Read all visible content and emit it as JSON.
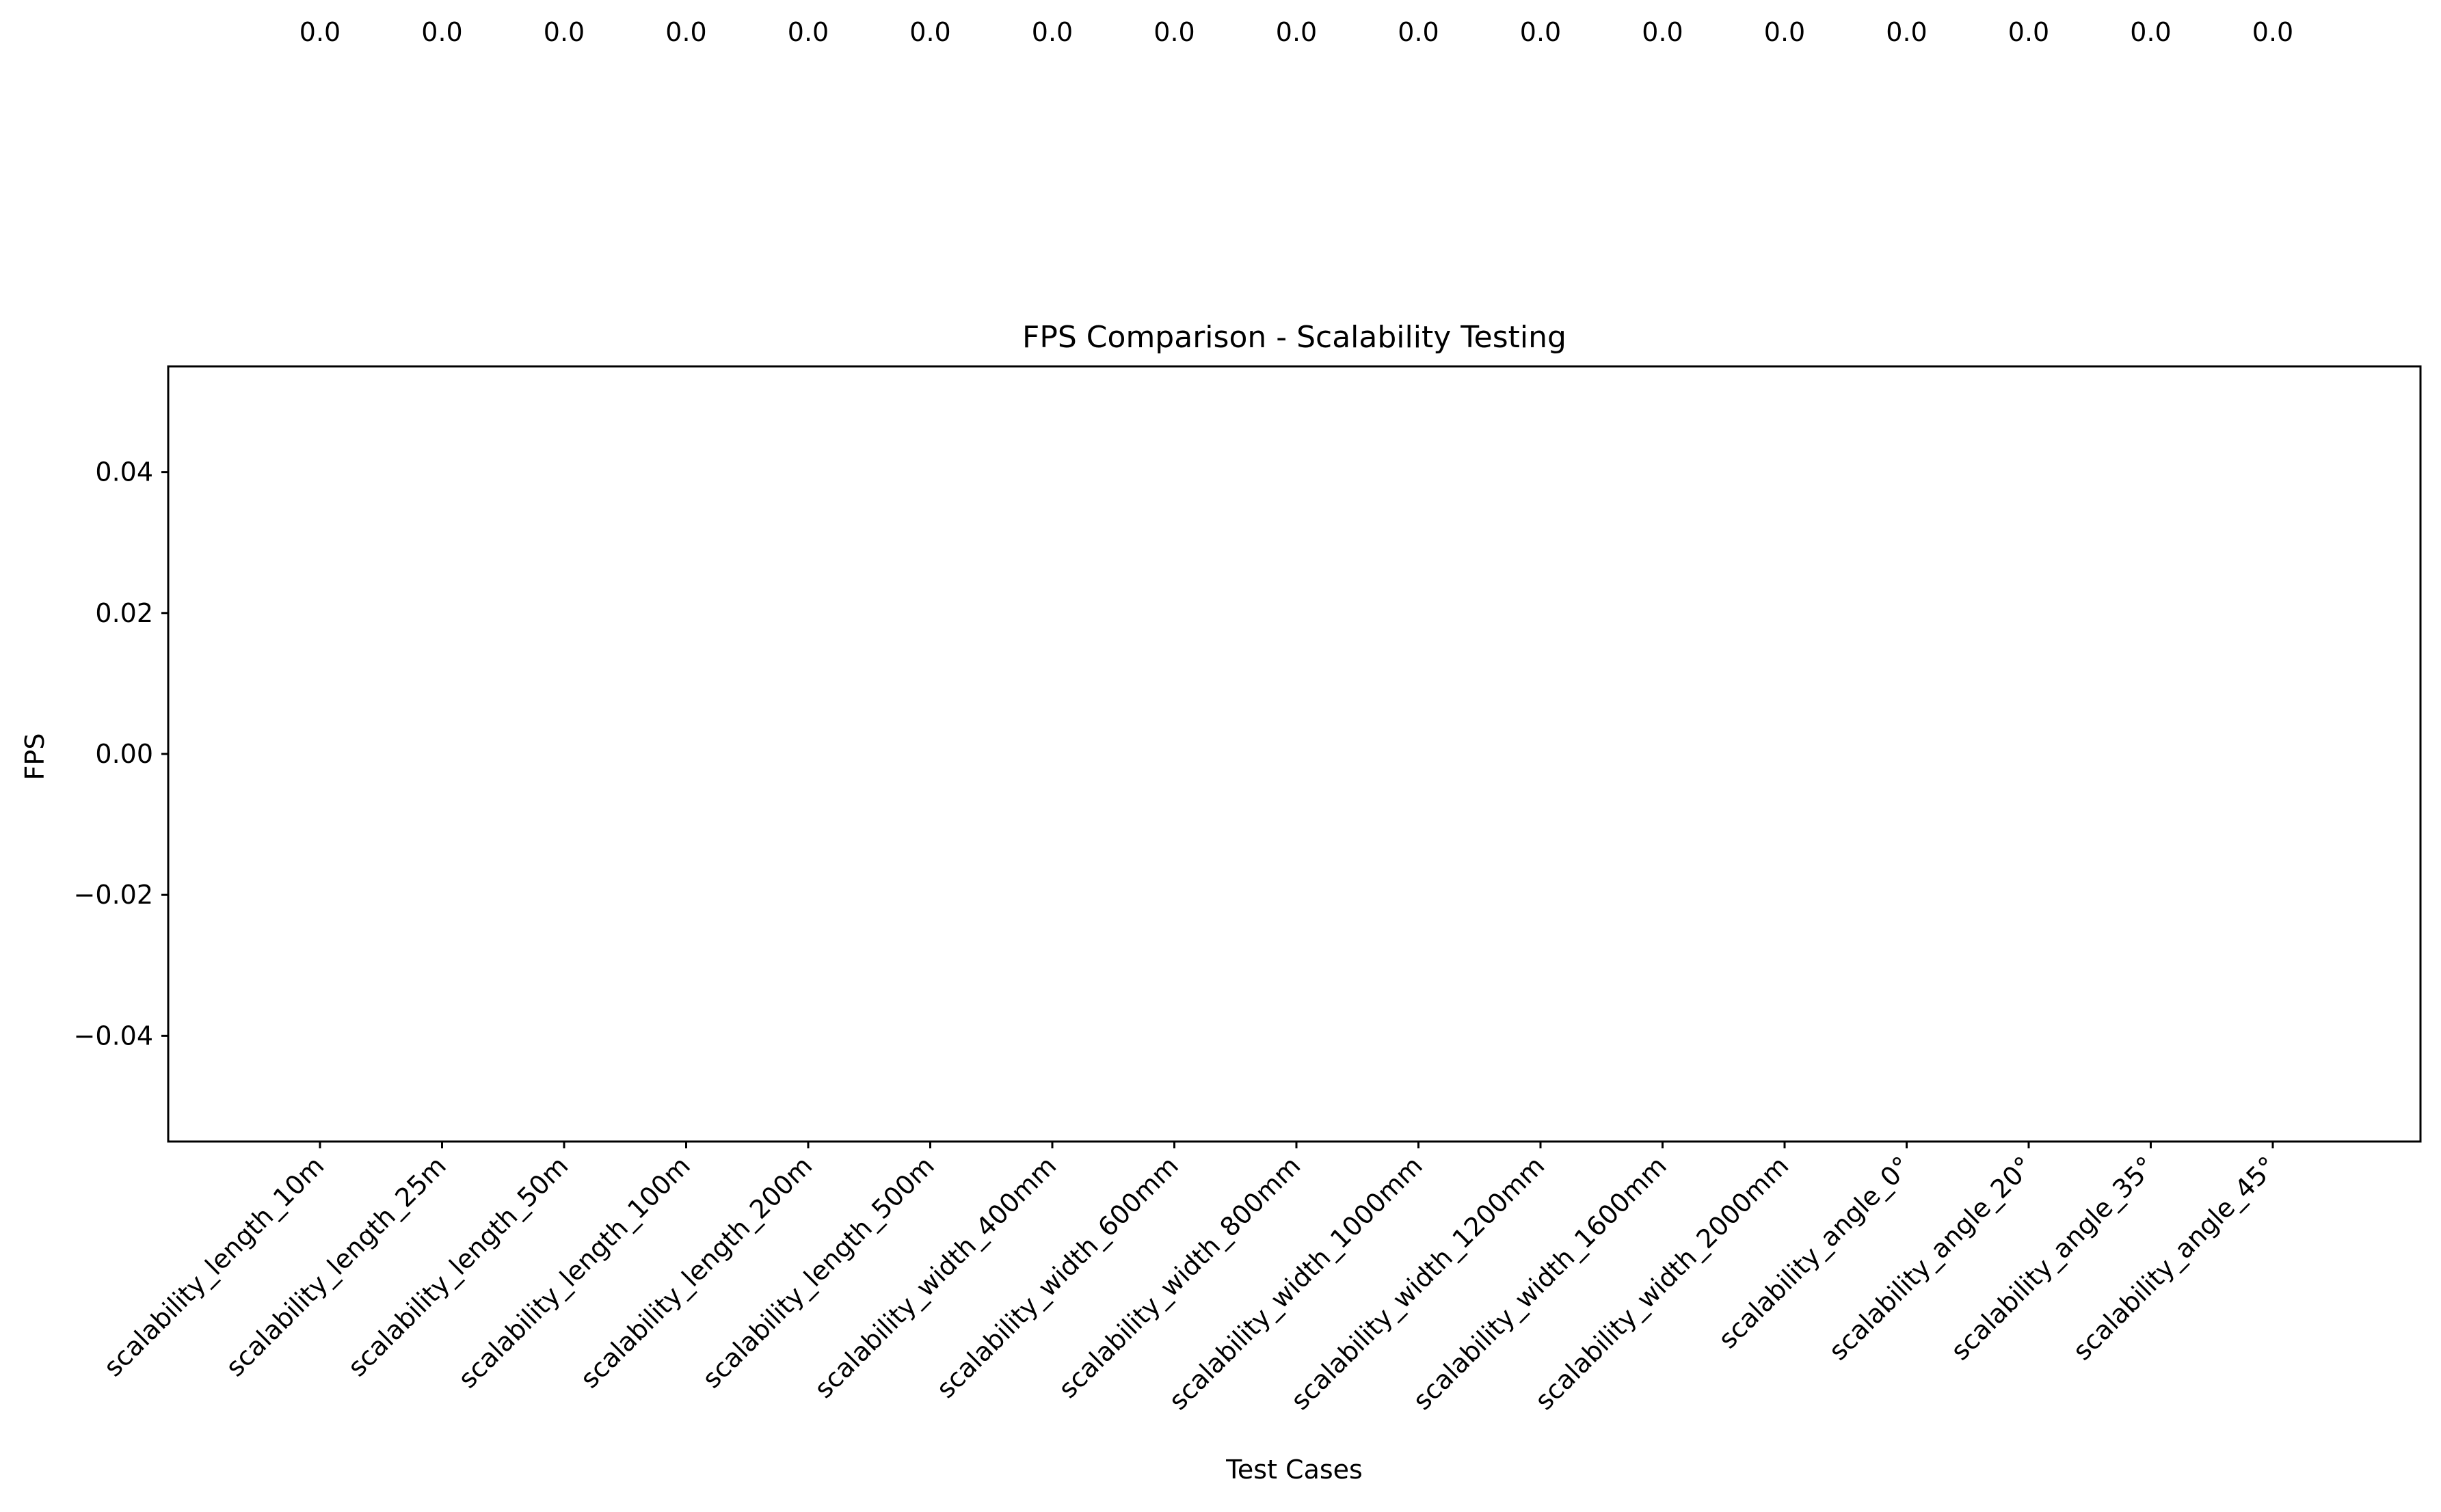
{
  "chart_data": {
    "type": "bar",
    "title": "FPS Comparison - Scalability Testing",
    "xlabel": "Test Cases",
    "ylabel": "FPS",
    "categories": [
      "scalability_length_10m",
      "scalability_length_25m",
      "scalability_length_50m",
      "scalability_length_100m",
      "scalability_length_200m",
      "scalability_length_500m",
      "scalability_width_400mm",
      "scalability_width_600mm",
      "scalability_width_800mm",
      "scalability_width_1000mm",
      "scalability_width_1200mm",
      "scalability_width_1600mm",
      "scalability_width_2000mm",
      "scalability_angle_0°",
      "scalability_angle_20°",
      "scalability_angle_35°",
      "scalability_angle_45°"
    ],
    "values": [
      0.0,
      0.0,
      0.0,
      0.0,
      0.0,
      0.0,
      0.0,
      0.0,
      0.0,
      0.0,
      0.0,
      0.0,
      0.0,
      0.0,
      0.0,
      0.0,
      0.0
    ],
    "data_labels": [
      "0.0",
      "0.0",
      "0.0",
      "0.0",
      "0.0",
      "0.0",
      "0.0",
      "0.0",
      "0.0",
      "0.0",
      "0.0",
      "0.0",
      "0.0",
      "0.0",
      "0.0",
      "0.0",
      "0.0"
    ],
    "ylim": [
      -0.055,
      0.055
    ],
    "yticks": [
      -0.04,
      -0.02,
      0.0,
      0.02,
      0.04
    ],
    "ytick_labels": [
      "−0.04",
      "−0.02",
      "0.00",
      "0.02",
      "0.04"
    ],
    "grid": false,
    "legend": "none"
  }
}
